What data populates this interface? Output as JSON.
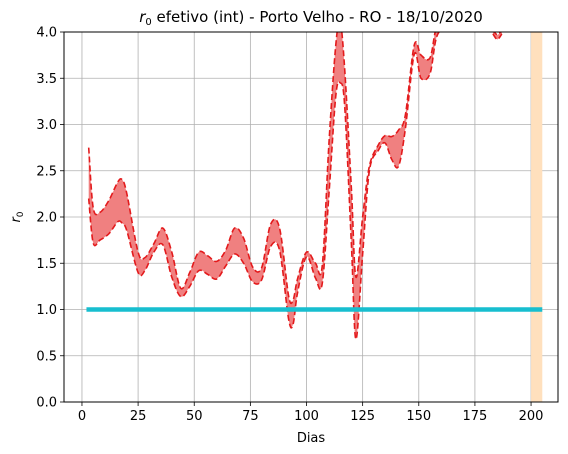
{
  "chart_data": {
    "type": "area",
    "title_symbol": "r",
    "title_subscript": "0",
    "title_rest": " efetivo (int) - Porto Velho - RO - 18/10/2020",
    "xlabel": "Dias",
    "ylabel_symbol": "r",
    "ylabel_subscript": "0",
    "xlim": [
      -8,
      212
    ],
    "ylim": [
      0,
      4.0
    ],
    "xticks": [
      0,
      25,
      50,
      75,
      100,
      125,
      150,
      175,
      200
    ],
    "yticks": [
      "0.0",
      "0.5",
      "1.0",
      "1.5",
      "2.0",
      "2.5",
      "3.0",
      "3.5",
      "4.0"
    ],
    "grid": true,
    "reference_line": {
      "y": 1.0,
      "x_start": 2,
      "x_end": 205,
      "color": "#17becf"
    },
    "highlight_span": {
      "x_start": 200,
      "x_end": 205,
      "color": "#ffe0bd"
    },
    "band_color": "#f08080",
    "line_color": "#e31a1c",
    "series": [
      {
        "role": "upper",
        "x": [
          3,
          5,
          8,
          12,
          16,
          18,
          20,
          25,
          28,
          32,
          36,
          40,
          44,
          48,
          52,
          56,
          60,
          64,
          68,
          72,
          76,
          80,
          84,
          88,
          92,
          94,
          96,
          100,
          104,
          107,
          110,
          113,
          115,
          117,
          120,
          122,
          125,
          128,
          132,
          135,
          138,
          141,
          144,
          148,
          151,
          155,
          158,
          163
        ],
        "y": [
          2.75,
          2.1,
          2.05,
          2.18,
          2.38,
          2.4,
          2.25,
          1.62,
          1.56,
          1.71,
          1.88,
          1.62,
          1.23,
          1.4,
          1.62,
          1.58,
          1.52,
          1.64,
          1.88,
          1.77,
          1.46,
          1.45,
          1.92,
          1.88,
          1.15,
          1.1,
          1.33,
          1.62,
          1.5,
          1.47,
          2.8,
          3.85,
          4.1,
          3.6,
          2.3,
          1.35,
          2.0,
          2.55,
          2.78,
          2.88,
          2.87,
          2.94,
          3.1,
          3.86,
          3.75,
          3.72,
          4.06,
          4.2
        ]
      },
      {
        "role": "lower",
        "x": [
          3,
          5,
          8,
          12,
          16,
          18,
          20,
          25,
          28,
          32,
          36,
          40,
          44,
          48,
          52,
          56,
          60,
          64,
          68,
          72,
          76,
          80,
          84,
          88,
          92,
          94,
          96,
          100,
          104,
          107,
          110,
          113,
          115,
          117,
          120,
          122,
          125,
          128,
          132,
          135,
          138,
          141,
          144,
          148,
          151,
          155,
          158,
          163
        ],
        "y": [
          2.2,
          1.72,
          1.75,
          1.82,
          1.95,
          1.93,
          1.85,
          1.4,
          1.42,
          1.62,
          1.7,
          1.35,
          1.14,
          1.25,
          1.42,
          1.38,
          1.33,
          1.47,
          1.6,
          1.5,
          1.3,
          1.32,
          1.68,
          1.64,
          0.9,
          0.84,
          1.18,
          1.57,
          1.34,
          1.28,
          2.25,
          3.3,
          3.45,
          3.2,
          1.7,
          0.68,
          1.6,
          2.5,
          2.72,
          2.8,
          2.62,
          2.55,
          2.95,
          3.76,
          3.5,
          3.55,
          3.95,
          4.1
        ]
      },
      {
        "role": "upper-right",
        "x": [
          183,
          185,
          187
        ],
        "y": [
          4.02,
          3.97,
          4.02
        ]
      },
      {
        "role": "lower-right",
        "x": [
          183,
          185,
          187
        ],
        "y": [
          3.98,
          3.92,
          3.98
        ]
      }
    ]
  }
}
